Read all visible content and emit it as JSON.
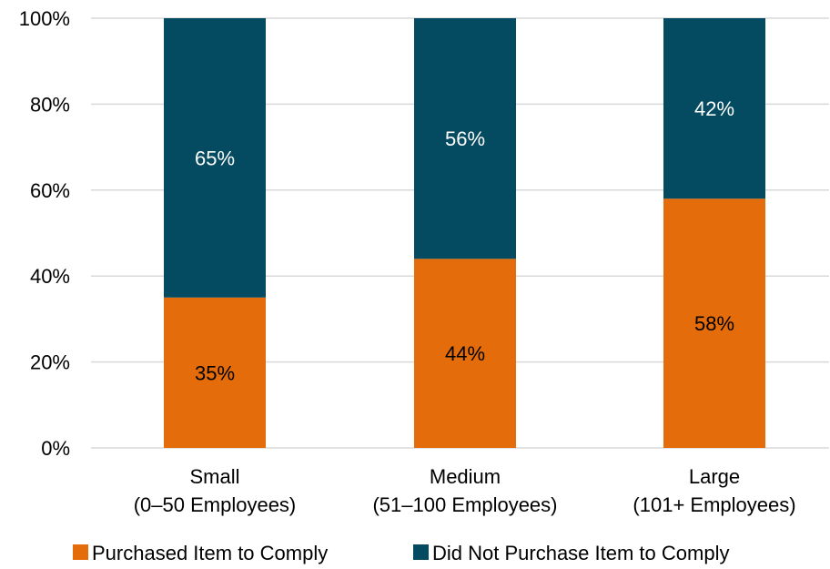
{
  "chart_data": {
    "type": "bar",
    "stacked": true,
    "categories": [
      [
        "Small",
        "(0–50 Employees)"
      ],
      [
        "Medium",
        "(51–100 Employees)"
      ],
      [
        "Large",
        "(101+ Employees)"
      ]
    ],
    "series": [
      {
        "name": "Purchased Item to Comply",
        "values": [
          35,
          44,
          58
        ],
        "labels": [
          "35%",
          "44%",
          "58%"
        ],
        "color": "#E46C0A",
        "label_color": "#000000"
      },
      {
        "name": "Did Not Purchase Item to Comply",
        "values": [
          65,
          56,
          42
        ],
        "labels": [
          "65%",
          "56%",
          "42%"
        ],
        "color": "#044A60",
        "label_color": "#ffffff"
      }
    ],
    "y_ticks": [
      "0%",
      "20%",
      "40%",
      "60%",
      "80%",
      "100%"
    ],
    "ylim": [
      0,
      100
    ],
    "grid": true,
    "grid_color": "#D9D9D9",
    "legend_position": "bottom",
    "title": "",
    "xlabel": "",
    "ylabel": ""
  }
}
